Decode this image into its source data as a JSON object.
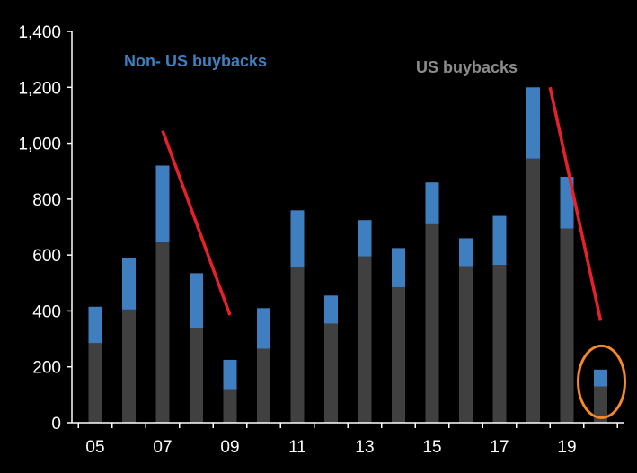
{
  "chart_data": {
    "type": "bar",
    "stacked": true,
    "x": [
      2005,
      2006,
      2007,
      2008,
      2009,
      2010,
      2011,
      2012,
      2013,
      2014,
      2015,
      2016,
      2017,
      2018,
      2019,
      2020
    ],
    "x_tick_labels": [
      "05",
      "07",
      "09",
      "11",
      "13",
      "15",
      "17",
      "19"
    ],
    "x_tick_values": [
      2005,
      2007,
      2009,
      2011,
      2013,
      2015,
      2017,
      2019
    ],
    "series": [
      {
        "name": "US buybacks",
        "color": "#404040",
        "values": [
          285,
          405,
          645,
          340,
          120,
          265,
          555,
          355,
          595,
          485,
          710,
          560,
          565,
          945,
          695,
          130
        ]
      },
      {
        "name": "Non- US buybacks",
        "color": "#3f7fc0",
        "values": [
          130,
          185,
          275,
          195,
          105,
          145,
          205,
          100,
          130,
          140,
          150,
          100,
          175,
          255,
          185,
          60
        ]
      }
    ],
    "ylim": [
      0,
      1400
    ],
    "y_ticks": [
      0,
      200,
      400,
      600,
      800,
      1000,
      1200,
      1400
    ],
    "y_tick_labels": [
      "0",
      "200",
      "400",
      "600",
      "800",
      "1,000",
      "1,200",
      "1,400"
    ],
    "grid": false,
    "annotations": {
      "trend_lines_color": "#e8202a",
      "trend_lines": [
        {
          "from": [
            2007,
            1045
          ],
          "to": [
            2009,
            385
          ]
        },
        {
          "from": [
            2018.5,
            1200
          ],
          "to": [
            2020,
            365
          ]
        }
      ],
      "highlight_circle_color": "#f5892a",
      "highlight_circle_at": [
        2020,
        140
      ]
    }
  },
  "labels": {
    "non_us": "Non- US buybacks",
    "us": "US buybacks"
  }
}
